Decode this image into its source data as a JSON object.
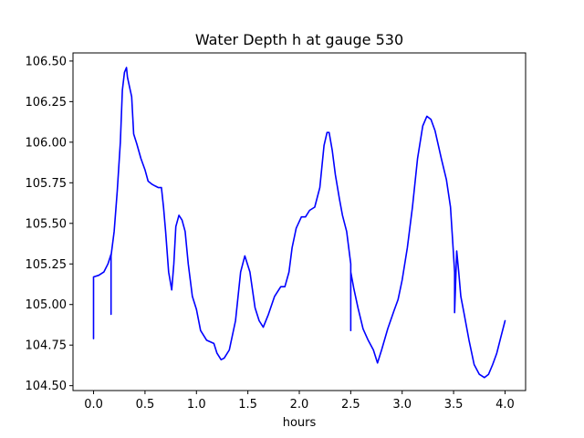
{
  "chart_data": {
    "type": "line",
    "title": "Water Depth h at gauge 530",
    "xlabel": "hours",
    "ylabel": "",
    "xlim": [
      -0.2,
      4.2
    ],
    "ylim": [
      104.47,
      106.55
    ],
    "x_ticks": [
      0.0,
      0.5,
      1.0,
      1.5,
      2.0,
      2.5,
      3.0,
      3.5,
      4.0
    ],
    "x_tick_labels": [
      "0.0",
      "0.5",
      "1.0",
      "1.5",
      "2.0",
      "2.5",
      "3.0",
      "3.5",
      "4.0"
    ],
    "y_ticks": [
      104.5,
      104.75,
      105.0,
      105.25,
      105.5,
      105.75,
      106.0,
      106.25,
      106.5
    ],
    "y_tick_labels": [
      "104.50",
      "104.75",
      "105.00",
      "105.25",
      "105.50",
      "105.75",
      "106.00",
      "106.25",
      "106.50"
    ],
    "grid": false,
    "legend": "none",
    "series": [
      {
        "color": "#0000ff",
        "x": [
          0.0,
          0.0,
          0.05,
          0.1,
          0.14,
          0.17,
          0.17,
          0.17,
          0.2,
          0.23,
          0.26,
          0.28,
          0.3,
          0.32,
          0.33,
          0.35,
          0.37,
          0.39,
          0.42,
          0.46,
          0.5,
          0.53,
          0.57,
          0.6,
          0.63,
          0.66,
          0.68,
          0.7,
          0.73,
          0.76,
          0.78,
          0.8,
          0.83,
          0.86,
          0.89,
          0.92,
          0.96,
          1.0,
          1.04,
          1.1,
          1.17,
          1.2,
          1.24,
          1.27,
          1.32,
          1.38,
          1.43,
          1.47,
          1.52,
          1.57,
          1.61,
          1.65,
          1.7,
          1.76,
          1.82,
          1.86,
          1.9,
          1.93,
          1.97,
          2.02,
          2.06,
          2.1,
          2.15,
          2.2,
          2.24,
          2.27,
          2.29,
          2.32,
          2.35,
          2.39,
          2.42,
          2.46,
          2.5,
          2.5,
          2.5,
          2.53,
          2.57,
          2.62,
          2.67,
          2.72,
          2.76,
          2.8,
          2.86,
          2.92,
          2.96,
          3.0,
          3.05,
          3.1,
          3.15,
          3.2,
          3.24,
          3.28,
          3.32,
          3.38,
          3.43,
          3.47,
          3.5,
          3.51,
          3.51,
          3.53,
          3.55,
          3.57,
          3.6,
          3.65,
          3.7,
          3.75,
          3.8,
          3.84,
          3.88,
          3.92,
          3.96,
          4.0
        ],
        "y": [
          104.79,
          105.17,
          105.18,
          105.2,
          105.25,
          105.31,
          104.94,
          105.3,
          105.45,
          105.7,
          106.0,
          106.32,
          106.43,
          106.46,
          106.4,
          106.34,
          106.28,
          106.05,
          105.99,
          105.9,
          105.83,
          105.76,
          105.74,
          105.73,
          105.72,
          105.72,
          105.6,
          105.45,
          105.2,
          105.09,
          105.25,
          105.48,
          105.55,
          105.52,
          105.45,
          105.25,
          105.05,
          104.97,
          104.84,
          104.78,
          104.76,
          104.7,
          104.66,
          104.67,
          104.72,
          104.9,
          105.2,
          105.3,
          105.2,
          104.98,
          104.9,
          104.86,
          104.94,
          105.05,
          105.11,
          105.11,
          105.2,
          105.35,
          105.47,
          105.54,
          105.54,
          105.58,
          105.6,
          105.72,
          105.98,
          106.06,
          106.06,
          105.95,
          105.8,
          105.65,
          105.55,
          105.45,
          105.25,
          104.84,
          105.2,
          105.1,
          104.98,
          104.85,
          104.78,
          104.72,
          104.64,
          104.72,
          104.85,
          104.96,
          105.03,
          105.15,
          105.35,
          105.6,
          105.9,
          106.1,
          106.16,
          106.14,
          106.07,
          105.9,
          105.77,
          105.6,
          105.3,
          105.2,
          104.95,
          105.33,
          105.2,
          105.05,
          104.95,
          104.78,
          104.63,
          104.57,
          104.55,
          104.57,
          104.63,
          104.7,
          104.8,
          104.9
        ]
      }
    ]
  }
}
